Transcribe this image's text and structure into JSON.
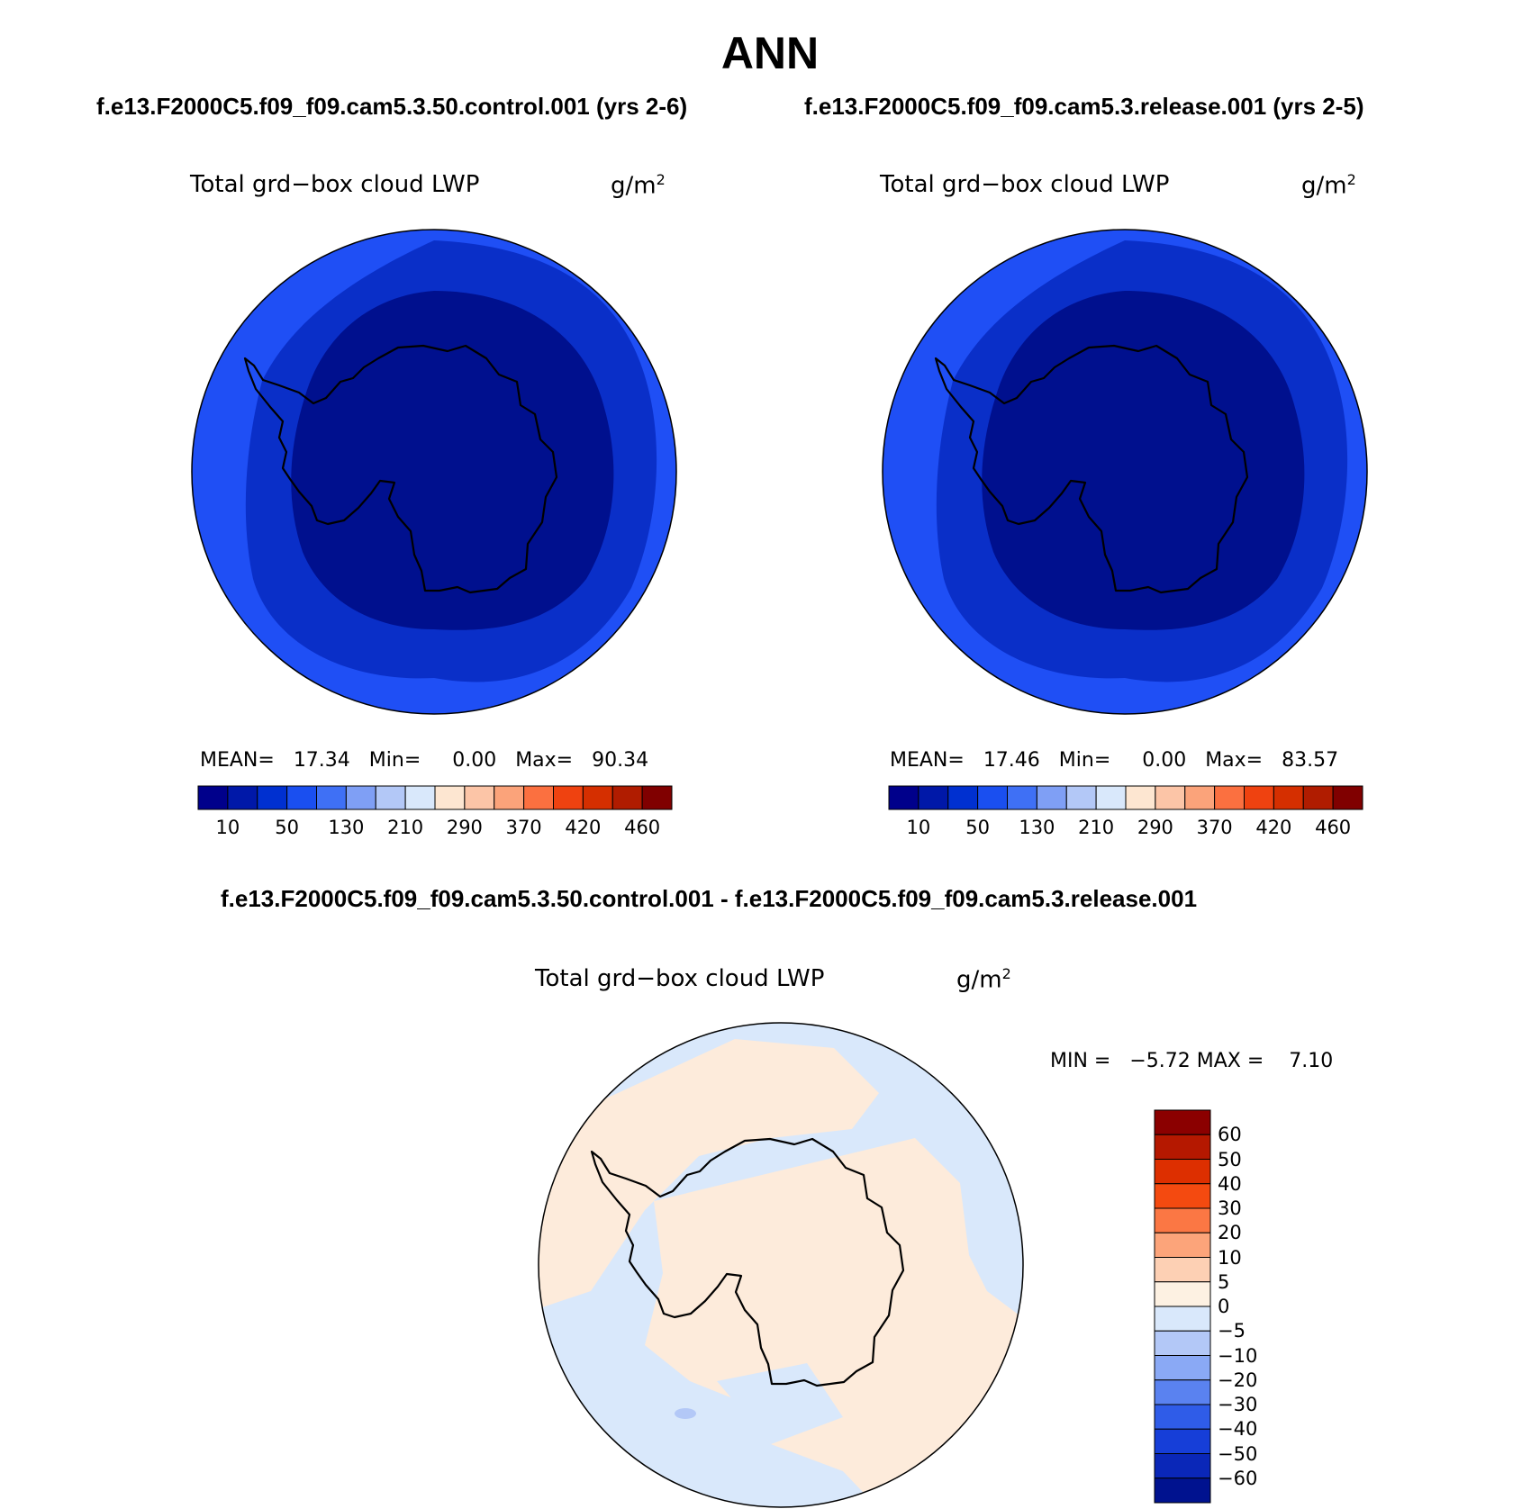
{
  "title": "ANN",
  "panels": [
    {
      "case_title": "f.e13.F2000C5.f09_f09.cam5.3.50.control.001 (yrs 2-6)",
      "variable": "Total grd−box cloud LWP",
      "units_base": "g/m",
      "units_exp": "2",
      "stats": {
        "mean_label": "MEAN=",
        "mean": "17.34",
        "min_label": "Min=",
        "min": "0.00",
        "max_label": "Max=",
        "max": "90.34"
      }
    },
    {
      "case_title": "f.e13.F2000C5.f09_f09.cam5.3.release.001 (yrs 2-5)",
      "variable": "Total grd−box cloud LWP",
      "units_base": "g/m",
      "units_exp": "2",
      "stats": {
        "mean_label": "MEAN=",
        "mean": "17.46",
        "min_label": "Min=",
        "min": "0.00",
        "max_label": "Max=",
        "max": "83.57"
      }
    }
  ],
  "diff_panel": {
    "case_title": "f.e13.F2000C5.f09_f09.cam5.3.50.control.001 - f.e13.F2000C5.f09_f09.cam5.3.release.001",
    "variable": "Total grd−box cloud LWP",
    "units_base": "g/m",
    "units_exp": "2",
    "minmax": "MIN =   −5.72 MAX =    7.10"
  },
  "colorbar_abs": {
    "colors": [
      "#00008b",
      "#0018a8",
      "#0030d0",
      "#1a4ff0",
      "#3f70f5",
      "#7f9ff5",
      "#b3c8f7",
      "#d9e8fb",
      "#fde6d1",
      "#fcc5a7",
      "#fba37a",
      "#fb7040",
      "#ef4210",
      "#d52f00",
      "#b01c00",
      "#800000"
    ],
    "tick_labels": [
      "10",
      "50",
      "130",
      "210",
      "290",
      "370",
      "420",
      "460"
    ]
  },
  "colorbar_diff": {
    "colors": [
      "#8b0000",
      "#b51800",
      "#dd2f00",
      "#f44a10",
      "#fb7744",
      "#fca47a",
      "#fdd0b4",
      "#fdf1e2",
      "#d9e8fb",
      "#b3c8f7",
      "#8aa9f5",
      "#5a82f0",
      "#2f5ce8",
      "#163ed8",
      "#0a27b8",
      "#00128f"
    ],
    "tick_labels": [
      "60",
      "50",
      "40",
      "30",
      "20",
      "10",
      "5",
      "0",
      "−5",
      "−10",
      "−20",
      "−30",
      "−40",
      "−50",
      "−60"
    ]
  },
  "map_colors": {
    "ring_outer": "#1f4ff5",
    "ring_mid": "#0a2fc8",
    "ring_inner": "#00108e",
    "diff_pos": "#fdebdb",
    "diff_neg": "#d9e8fb",
    "diff_neg2": "#b3c8f7",
    "coast": "#000000"
  }
}
